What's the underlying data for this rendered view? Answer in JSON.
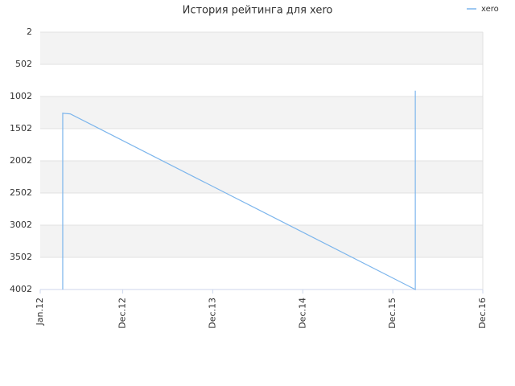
{
  "chart_data": {
    "type": "line",
    "title": "История рейтинга для xero",
    "x": [
      "2012-04",
      "2012-04",
      "2012-04",
      "2012-05",
      "2016-03",
      "2016-03"
    ],
    "series": [
      {
        "name": "xero",
        "color": "#7cb5ec",
        "values": [
          4002,
          1252,
          1262,
          1272,
          4002,
          912
        ]
      }
    ],
    "xlim": [
      "2012-01",
      "2016-12"
    ],
    "xticks": [
      {
        "value": "2012-01",
        "label": "Jan.12"
      },
      {
        "value": "2012-12",
        "label": "Dec.12"
      },
      {
        "value": "2013-12",
        "label": "Dec.13"
      },
      {
        "value": "2014-12",
        "label": "Dec.14"
      },
      {
        "value": "2015-12",
        "label": "Dec.15"
      },
      {
        "value": "2016-12",
        "label": "Dec.16"
      }
    ],
    "ylim": [
      2,
      4002
    ],
    "y_reversed": true,
    "yticks": [
      2,
      502,
      1002,
      1502,
      2002,
      2502,
      3002,
      3502,
      4002
    ],
    "grid": true,
    "legend": "top-right"
  }
}
